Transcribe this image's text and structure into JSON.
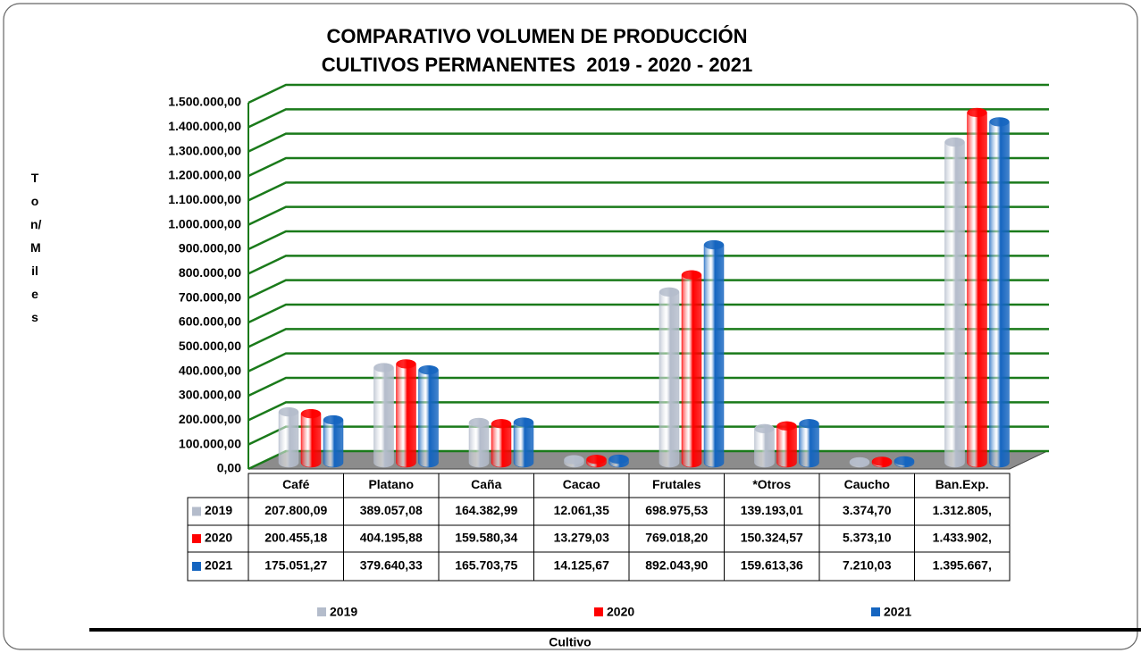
{
  "chart_data": {
    "type": "bar3d",
    "title": "COMPARATIVO VOLUMEN DE PRODUCCIÓN",
    "subtitle": "CULTIVOS PERMANENTES  2019 - 2020 - 2021",
    "y_label": "Ton/Miles",
    "x_label": "Cultivo",
    "categories": [
      "Café",
      "Platano",
      "Caña",
      "Cacao",
      "Frutales",
      "*Otros",
      "Caucho",
      "Ban.Exp."
    ],
    "series": [
      {
        "name": "2019",
        "color": "#b4bccb",
        "values": [
          207800.09,
          389057.08,
          164382.99,
          12061.35,
          698975.53,
          139193.01,
          3374.7,
          1312805
        ],
        "value_labels": [
          "207.800,09",
          "389.057,08",
          "164.382,99",
          "12.061,35",
          "698.975,53",
          "139.193,01",
          "3.374,70",
          "1.312.805,"
        ]
      },
      {
        "name": "2020",
        "color": "#ff0000",
        "values": [
          200455.18,
          404195.88,
          159580.34,
          13279.03,
          769018.2,
          150324.57,
          5373.1,
          1433902
        ],
        "value_labels": [
          "200.455,18",
          "404.195,88",
          "159.580,34",
          "13.279,03",
          "769.018,20",
          "150.324,57",
          "5.373,10",
          "1.433.902,"
        ]
      },
      {
        "name": "2021",
        "color": "#1565c0",
        "values": [
          175051.27,
          379640.33,
          165703.75,
          14125.67,
          892043.9,
          159613.36,
          7210.03,
          1395667
        ],
        "value_labels": [
          "175.051,27",
          "379.640,33",
          "165.703,75",
          "14.125,67",
          "892.043,90",
          "159.613,36",
          "7.210,03",
          "1.395.667,"
        ]
      }
    ],
    "ylim": [
      0,
      1500000
    ],
    "yticks": [
      {
        "value": 0,
        "label": "0,00"
      },
      {
        "value": 100000,
        "label": "100.000,00"
      },
      {
        "value": 200000,
        "label": "200.000,00"
      },
      {
        "value": 300000,
        "label": "300.000,00"
      },
      {
        "value": 400000,
        "label": "400.000,00"
      },
      {
        "value": 500000,
        "label": "500.000,00"
      },
      {
        "value": 600000,
        "label": "600.000,00"
      },
      {
        "value": 700000,
        "label": "700.000,00"
      },
      {
        "value": 800000,
        "label": "800.000,00"
      },
      {
        "value": 900000,
        "label": "900.000,00"
      },
      {
        "value": 1000000,
        "label": "1.000.000,00"
      },
      {
        "value": 1100000,
        "label": "1.100.000,00"
      },
      {
        "value": 1200000,
        "label": "1.200.000,00"
      },
      {
        "value": 1300000,
        "label": "1.300.000,00"
      },
      {
        "value": 1400000,
        "label": "1.400.000,00"
      },
      {
        "value": 1500000,
        "label": "1.500.000,00"
      }
    ],
    "grid": true,
    "grid_color": "#1a7a1a",
    "legend": "bottom"
  }
}
